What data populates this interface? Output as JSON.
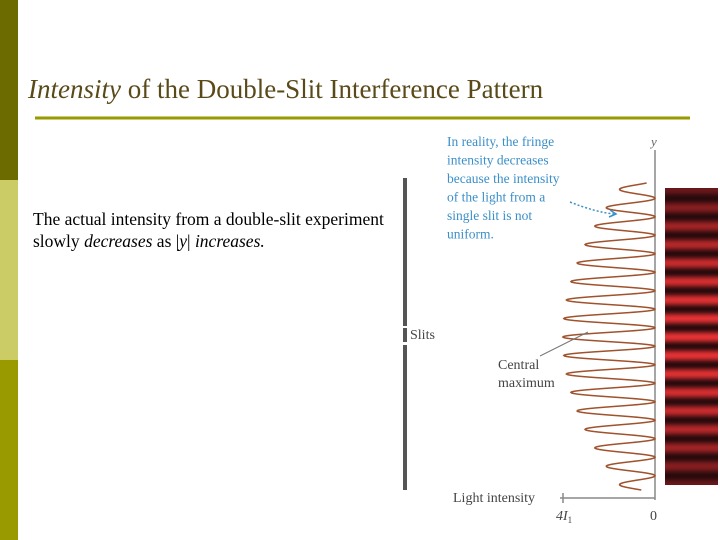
{
  "slide": {
    "title": {
      "italic": "Intensity",
      "rest": " of the Double-Slit Interference Pattern"
    },
    "body": [
      {
        "text": "The actual intensity from a double-slit experiment slowly ",
        "italic": false
      },
      {
        "text": "decreases",
        "italic": true
      },
      {
        "text": " as |",
        "italic": false
      },
      {
        "text": "y",
        "italic": true
      },
      {
        "text": "| ",
        "italic": false
      },
      {
        "text": "increases.",
        "italic": true
      }
    ],
    "figure": {
      "annotation": [
        "In reality, the fringe",
        "intensity decreases",
        "because the intensity",
        "of the light from a",
        "single slit is not",
        "uniform."
      ],
      "axis_label": "y",
      "slits_label": "Slits",
      "central_label": [
        "Central",
        "maximum"
      ],
      "intensity_label": "Light intensity",
      "tick_left": "4I",
      "tick_left_sub": "1",
      "tick_zero": "0"
    }
  }
}
